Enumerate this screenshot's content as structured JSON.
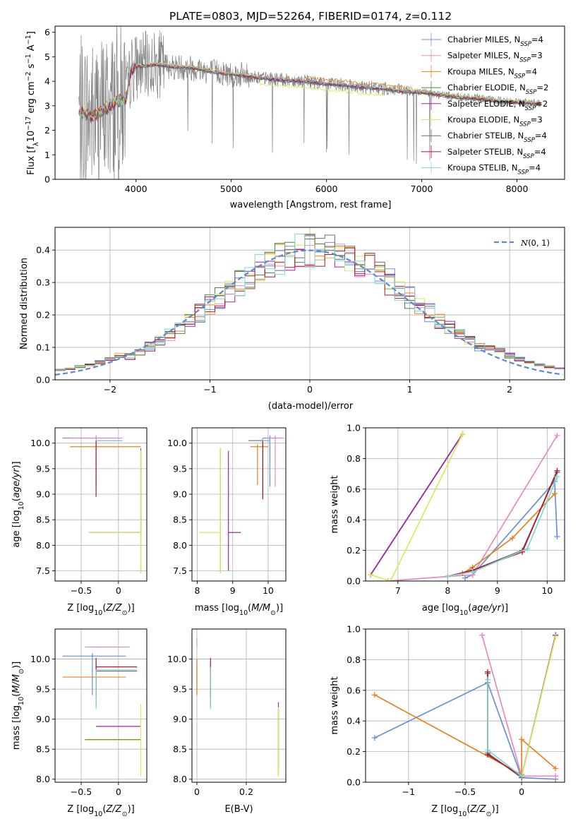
{
  "title": "PLATE=0803, MJD=52264, FIBERID=0174, z=0.112",
  "colors": {
    "Chabrier MILES": "#6a8fd8",
    "Salpeter MILES": "#e58ac0",
    "Kroupa MILES": "#e8821e",
    "Chabrier ELODIE": "#4b8a3a",
    "Salpeter ELODIE": "#a024a8",
    "Kroupa ELODIE": "#d7ea5b",
    "Chabrier STELIB": "#6b6b6b",
    "Salpeter STELIB": "#b2182b",
    "Kroupa STELIB": "#7fd6d4",
    "gaussian": "#5b87d6"
  },
  "chart_data": [
    {
      "type": "line",
      "name": "spectrum",
      "xlabel": "wavelength [Angstrom, rest frame]",
      "ylabel": "Flux [fλ10⁻¹⁷ erg cm⁻² s⁻¹ A⁻¹]",
      "xlim": [
        3150,
        8500
      ],
      "ylim": [
        0,
        6.25
      ],
      "xticks": [
        4000,
        5000,
        6000,
        7000,
        8000
      ],
      "yticks": [
        0,
        1,
        2,
        3,
        4,
        5,
        6
      ],
      "legend_position": "top-right",
      "legend": [
        {
          "base": "Chabrier MILES, N",
          "sub": "SSP",
          "tail": "=4",
          "color_key": "Chabrier MILES"
        },
        {
          "base": "Salpeter MILES, N",
          "sub": "SSP",
          "tail": "=3",
          "color_key": "Salpeter MILES"
        },
        {
          "base": "Kroupa MILES, N",
          "sub": "SSP",
          "tail": "=4",
          "color_key": "Kroupa MILES"
        },
        {
          "base": "Chabrier ELODIE, N",
          "sub": "SSP",
          "tail": "=2",
          "color_key": "Chabrier ELODIE"
        },
        {
          "base": "Salpeter ELODIE, N",
          "sub": "SSP",
          "tail": "=2",
          "color_key": "Salpeter ELODIE"
        },
        {
          "base": "Kroupa ELODIE, N",
          "sub": "SSP",
          "tail": "=3",
          "color_key": "Kroupa ELODIE"
        },
        {
          "base": "Chabrier STELIB, N",
          "sub": "SSP",
          "tail": "=4",
          "color_key": "Chabrier STELIB"
        },
        {
          "base": "Salpeter STELIB, N",
          "sub": "SSP",
          "tail": "=4",
          "color_key": "Salpeter STELIB"
        },
        {
          "base": "Kroupa STELIB, N",
          "sub": "SSP",
          "tail": "=4",
          "color_key": "Kroupa STELIB"
        }
      ],
      "data_color": "#808080",
      "continuum_points": [
        [
          3400,
          2.75
        ],
        [
          3550,
          2.6
        ],
        [
          3700,
          2.9
        ],
        [
          3800,
          3.2
        ],
        [
          3900,
          3.3
        ],
        [
          3950,
          4.5
        ],
        [
          4000,
          4.6
        ],
        [
          4200,
          4.7
        ],
        [
          4400,
          4.6
        ],
        [
          4600,
          4.55
        ],
        [
          4800,
          4.4
        ],
        [
          5000,
          4.3
        ],
        [
          5200,
          4.2
        ],
        [
          5400,
          4.1
        ],
        [
          5600,
          4.05
        ],
        [
          5800,
          4.0
        ],
        [
          6000,
          3.9
        ],
        [
          6200,
          3.85
        ],
        [
          6400,
          3.75
        ],
        [
          6600,
          3.7
        ],
        [
          6800,
          3.6
        ],
        [
          7000,
          3.55
        ],
        [
          7200,
          3.45
        ],
        [
          7400,
          3.35
        ],
        [
          7600,
          3.3
        ],
        [
          7800,
          3.2
        ],
        [
          8000,
          3.15
        ],
        [
          8250,
          3.1
        ]
      ]
    },
    {
      "type": "histogram",
      "name": "residuals",
      "xlabel": "(data-model)/error",
      "ylabel": "Normed distribution",
      "xlim": [
        -2.55,
        2.55
      ],
      "ylim": [
        0,
        0.47
      ],
      "xticks": [
        -2,
        -1,
        0,
        1,
        2
      ],
      "yticks": [
        0.0,
        0.1,
        0.2,
        0.3,
        0.4
      ],
      "legend": "N(0,1)",
      "legend_position": "top-right",
      "bin_width": 0.1
    },
    {
      "type": "errorbar",
      "name": "age-vs-Z",
      "xlabel": "Z [log10(Z/Z⊙)]",
      "ylabel": "age [log10(age/yr)]",
      "xlim": [
        -0.85,
        0.38
      ],
      "ylim": [
        7.3,
        10.3
      ],
      "xticks": [
        -0.5,
        0.0
      ],
      "yticks": [
        7.5,
        8.0,
        8.5,
        9.0,
        9.5,
        10.0
      ],
      "points": [
        {
          "model": "Chabrier MILES",
          "x": -0.3,
          "xerr": [
            0.45,
            0.3
          ],
          "y": 10.1,
          "yerr": [
            0.9,
            0.05
          ]
        },
        {
          "model": "Salpeter MILES",
          "x": -0.3,
          "xerr": [
            0.35,
            0.35
          ],
          "y": 10.1,
          "yerr": [
            0.0,
            0.05
          ]
        },
        {
          "model": "Kroupa MILES",
          "x": -0.3,
          "xerr": [
            0.35,
            0.6
          ],
          "y": 9.93,
          "yerr": [
            0.0,
            0.05
          ]
        },
        {
          "model": "Chabrier ELODIE",
          "x": 0.3,
          "xerr": [
            0.0,
            0.0
          ],
          "y": 8.25,
          "yerr": [
            0.8,
            1.65
          ]
        },
        {
          "model": "Salpeter ELODIE",
          "x": 0.3,
          "xerr": [
            0.7,
            0.0
          ],
          "y": 8.25,
          "yerr": [
            0.0,
            1.6
          ]
        },
        {
          "model": "Kroupa ELODIE",
          "x": 0.3,
          "xerr": [
            0.7,
            0.0
          ],
          "y": 8.25,
          "yerr": [
            0.8,
            1.6
          ]
        },
        {
          "model": "Chabrier STELIB",
          "x": -0.3,
          "xerr": [
            0.0,
            0.35
          ],
          "y": 10.05,
          "yerr": [
            0.0,
            0.05
          ]
        },
        {
          "model": "Salpeter STELIB",
          "x": -0.3,
          "xerr": [
            0.0,
            0.35
          ],
          "y": 10.05,
          "yerr": [
            1.1,
            0.05
          ]
        },
        {
          "model": "Kroupa STELIB",
          "x": -0.3,
          "xerr": [
            0.0,
            0.35
          ],
          "y": 10.05,
          "yerr": [
            0.0,
            0.05
          ]
        }
      ]
    },
    {
      "type": "errorbar",
      "name": "age-vs-mass",
      "xlabel": "mass [log10(M/M⊙)]",
      "ylabel": "",
      "xlim": [
        7.85,
        10.5
      ],
      "ylim": [
        7.3,
        10.3
      ],
      "xticks": [
        8,
        9,
        10
      ],
      "yticks": [
        7.5,
        8.0,
        8.5,
        9.0,
        9.5,
        10.0
      ],
      "points": [
        {
          "model": "Chabrier MILES",
          "x": 10.05,
          "xerr": [
            0.2,
            0.2
          ],
          "y": 10.1,
          "yerr": [
            0.95,
            0.05
          ]
        },
        {
          "model": "Salpeter MILES",
          "x": 10.2,
          "xerr": [
            0.25,
            0.25
          ],
          "y": 10.1,
          "yerr": [
            0.95,
            0.05
          ]
        },
        {
          "model": "Kroupa MILES",
          "x": 9.7,
          "xerr": [
            0.2,
            0.3
          ],
          "y": 9.93,
          "yerr": [
            0.75,
            0.05
          ]
        },
        {
          "model": "Chabrier ELODIE",
          "x": 8.65,
          "xerr": [
            0.0,
            0.0
          ],
          "y": 8.25,
          "yerr": [
            0.8,
            1.65
          ]
        },
        {
          "model": "Salpeter ELODIE",
          "x": 8.88,
          "xerr": [
            0.0,
            0.35
          ],
          "y": 8.25,
          "yerr": [
            0.75,
            1.6
          ]
        },
        {
          "model": "Kroupa ELODIE",
          "x": 8.65,
          "xerr": [
            0.6,
            0.0
          ],
          "y": 8.25,
          "yerr": [
            0.8,
            1.65
          ]
        },
        {
          "model": "Chabrier STELIB",
          "x": 9.85,
          "xerr": [
            0.4,
            0.2
          ],
          "y": 10.05,
          "yerr": [
            1.1,
            0.05
          ]
        },
        {
          "model": "Salpeter STELIB",
          "x": 9.85,
          "xerr": [
            0.0,
            0.2
          ],
          "y": 10.05,
          "yerr": [
            1.15,
            0.05
          ]
        },
        {
          "model": "Kroupa STELIB",
          "x": 9.85,
          "xerr": [
            0.0,
            0.2
          ],
          "y": 10.05,
          "yerr": [
            0.0,
            0.05
          ]
        }
      ]
    },
    {
      "type": "line",
      "name": "weight-vs-age",
      "xlabel": "age [log10(age/yr)]",
      "ylabel": "mass weight",
      "xlim": [
        6.35,
        10.35
      ],
      "ylim": [
        0,
        1.0
      ],
      "xticks": [
        7,
        8,
        9,
        10
      ],
      "yticks": [
        0.0,
        0.2,
        0.4,
        0.6,
        0.8,
        1.0
      ],
      "series": [
        {
          "model": "Chabrier MILES",
          "x": [
            8.35,
            8.5,
            10.15,
            10.2
          ],
          "y": [
            0.02,
            0.04,
            0.65,
            0.29
          ]
        },
        {
          "model": "Salpeter MILES",
          "x": [
            6.8,
            8.0,
            8.5,
            10.2
          ],
          "y": [
            0.0,
            0.03,
            0.04,
            0.95
          ]
        },
        {
          "model": "Kroupa MILES",
          "x": [
            8.3,
            8.5,
            9.3,
            10.15
          ],
          "y": [
            0.05,
            0.09,
            0.28,
            0.57
          ]
        },
        {
          "model": "Chabrier ELODIE",
          "x": [
            6.45,
            8.3
          ],
          "y": [
            0.04,
            0.96
          ]
        },
        {
          "model": "Salpeter ELODIE",
          "x": [
            6.45,
            8.3
          ],
          "y": [
            0.04,
            0.96
          ]
        },
        {
          "model": "Kroupa ELODIE",
          "x": [
            6.45,
            6.85,
            8.3
          ],
          "y": [
            0.04,
            0.0,
            0.96
          ]
        },
        {
          "model": "Chabrier STELIB",
          "x": [
            8.0,
            8.5,
            9.5,
            10.2
          ],
          "y": [
            0.03,
            0.07,
            0.2,
            0.71
          ]
        },
        {
          "model": "Salpeter STELIB",
          "x": [
            8.0,
            8.5,
            9.5,
            10.2
          ],
          "y": [
            0.03,
            0.07,
            0.19,
            0.72
          ]
        },
        {
          "model": "Kroupa STELIB",
          "x": [
            8.0,
            8.5,
            9.6,
            10.2
          ],
          "y": [
            0.03,
            0.06,
            0.21,
            0.68
          ]
        }
      ]
    },
    {
      "type": "errorbar",
      "name": "mass-vs-Z",
      "xlabel": "Z [log10(Z/Z⊙)]",
      "ylabel": "mass [log10(M/M⊙)]",
      "xlim": [
        -0.85,
        0.38
      ],
      "ylim": [
        7.95,
        10.5
      ],
      "xticks": [
        -0.5,
        0.0
      ],
      "yticks": [
        8.0,
        8.5,
        9.0,
        9.5,
        10.0
      ],
      "points": [
        {
          "model": "Chabrier MILES",
          "x": -0.35,
          "xerr": [
            0.4,
            0.45
          ],
          "y": 10.05,
          "yerr": [
            0.65,
            0.05
          ]
        },
        {
          "model": "Salpeter MILES",
          "x": -0.05,
          "xerr": [
            0.4,
            0.2
          ],
          "y": 10.2,
          "yerr": [
            0.0,
            0.0
          ]
        },
        {
          "model": "Kroupa MILES",
          "x": -0.3,
          "xerr": [
            0.45,
            0.4
          ],
          "y": 9.7,
          "yerr": [
            0.0,
            0.0
          ]
        },
        {
          "model": "Chabrier ELODIE",
          "x": -0.1,
          "xerr": [
            0.35,
            0.4
          ],
          "y": 8.66,
          "yerr": [
            0.0,
            0.0
          ]
        },
        {
          "model": "Salpeter ELODIE",
          "x": 0.0,
          "xerr": [
            0.3,
            0.3
          ],
          "y": 8.88,
          "yerr": [
            0.0,
            0.0
          ]
        },
        {
          "model": "Kroupa ELODIE",
          "x": 0.3,
          "xerr": [
            0.75,
            0.0
          ],
          "y": 8.65,
          "yerr": [
            0.6,
            0.6
          ]
        },
        {
          "model": "Chabrier STELIB",
          "x": -0.3,
          "xerr": [
            0.0,
            0.55
          ],
          "y": 9.8,
          "yerr": [
            0.6,
            0.15
          ]
        },
        {
          "model": "Salpeter STELIB",
          "x": -0.3,
          "xerr": [
            0.0,
            0.55
          ],
          "y": 9.87,
          "yerr": [
            0.5,
            0.15
          ]
        },
        {
          "model": "Kroupa STELIB",
          "x": -0.3,
          "xerr": [
            0.0,
            0.55
          ],
          "y": 9.82,
          "yerr": [
            0.65,
            0.0
          ]
        }
      ]
    },
    {
      "type": "errorbar",
      "name": "mass-vs-EBV",
      "xlabel": "E(B-V)",
      "ylabel": "",
      "xlim": [
        -0.02,
        0.36
      ],
      "ylim": [
        7.95,
        10.5
      ],
      "xticks": [
        0.0,
        0.2
      ],
      "yticks": [
        8.0,
        8.5,
        9.0,
        9.5,
        10.0
      ],
      "points": [
        {
          "model": "Chabrier MILES",
          "x": 0.0,
          "xerr": [
            0.0,
            0.0
          ],
          "y": 9.95,
          "yerr": [
            0.55,
            0.05
          ]
        },
        {
          "model": "Salpeter MILES",
          "x": 0.0,
          "xerr": [
            0.0,
            0.0
          ],
          "y": 10.2,
          "yerr": [
            0.0,
            0.15
          ]
        },
        {
          "model": "Kroupa MILES",
          "x": 0.0,
          "xerr": [
            0.0,
            0.0
          ],
          "y": 9.7,
          "yerr": [
            0.3,
            0.3
          ]
        },
        {
          "model": "Chabrier ELODIE",
          "x": 0.33,
          "xerr": [
            0.0,
            0.0
          ],
          "y": 8.66,
          "yerr": [
            0.6,
            0.55
          ]
        },
        {
          "model": "Salpeter ELODIE",
          "x": 0.33,
          "xerr": [
            0.0,
            0.0
          ],
          "y": 8.88,
          "yerr": [
            0.7,
            0.4
          ]
        },
        {
          "model": "Kroupa ELODIE",
          "x": 0.33,
          "xerr": [
            0.0,
            0.0
          ],
          "y": 8.65,
          "yerr": [
            0.6,
            0.55
          ]
        },
        {
          "model": "Chabrier STELIB",
          "x": 0.055,
          "xerr": [
            0.0,
            0.0
          ],
          "y": 9.8,
          "yerr": [
            0.6,
            0.1
          ]
        },
        {
          "model": "Salpeter STELIB",
          "x": 0.055,
          "xerr": [
            0.0,
            0.0
          ],
          "y": 9.87,
          "yerr": [
            0.5,
            0.15
          ]
        },
        {
          "model": "Kroupa STELIB",
          "x": 0.055,
          "xerr": [
            0.0,
            0.0
          ],
          "y": 9.82,
          "yerr": [
            0.65,
            0.05
          ]
        }
      ]
    },
    {
      "type": "line",
      "name": "weight-vs-Z",
      "xlabel": "Z [log10(Z/Z⊙)]",
      "ylabel": "mass weight",
      "xlim": [
        -1.38,
        0.38
      ],
      "ylim": [
        0,
        1.0
      ],
      "xticks": [
        -1.0,
        -0.5,
        0.0
      ],
      "yticks": [
        0.0,
        0.2,
        0.4,
        0.6,
        0.8,
        1.0
      ],
      "series": [
        {
          "model": "Chabrier MILES",
          "x": [
            -1.3,
            -0.3,
            0.0,
            0.3
          ],
          "y": [
            0.29,
            0.65,
            0.03,
            0.02
          ]
        },
        {
          "model": "Salpeter MILES",
          "x": [
            -0.35,
            0.0,
            0.3
          ],
          "y": [
            0.96,
            0.04,
            0.04
          ]
        },
        {
          "model": "Kroupa MILES",
          "x": [
            -1.3,
            0.0,
            0.0,
            0.3
          ],
          "y": [
            0.57,
            0.05,
            0.28,
            0.09
          ]
        },
        {
          "model": "Chabrier ELODIE",
          "x": [
            0.0,
            0.3
          ],
          "y": [
            0.04,
            0.96
          ]
        },
        {
          "model": "Salpeter ELODIE",
          "x": [
            0.0,
            0.3
          ],
          "y": [
            0.04,
            0.96
          ]
        },
        {
          "model": "Kroupa ELODIE",
          "x": [
            0.0,
            0.3
          ],
          "y": [
            0.04,
            0.95
          ]
        },
        {
          "model": "Chabrier STELIB",
          "x": [
            -0.3,
            -0.3,
            0.0
          ],
          "y": [
            0.71,
            0.19,
            0.03
          ]
        },
        {
          "model": "Salpeter STELIB",
          "x": [
            -0.3,
            -0.3,
            0.0
          ],
          "y": [
            0.72,
            0.18,
            0.04
          ]
        },
        {
          "model": "Kroupa STELIB",
          "x": [
            -0.3,
            -0.3,
            0.0
          ],
          "y": [
            0.67,
            0.21,
            0.04
          ]
        }
      ]
    }
  ]
}
